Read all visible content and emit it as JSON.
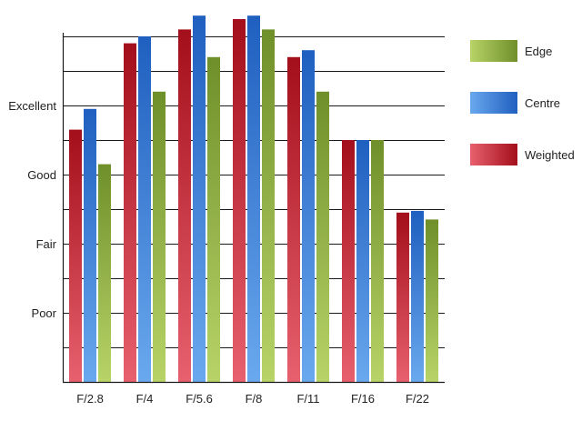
{
  "chart_data": {
    "type": "bar",
    "categories": [
      "F/2.8",
      "F/4",
      "F/5.6",
      "F/8",
      "F/11",
      "F/16",
      "F/22"
    ],
    "series": [
      {
        "name": "Weighted",
        "values": [
          7.3,
          9.8,
          10.2,
          10.5,
          9.4,
          7.0,
          4.9
        ]
      },
      {
        "name": "Centre",
        "values": [
          7.9,
          10.0,
          10.6,
          10.6,
          9.6,
          7.0,
          4.95
        ]
      },
      {
        "name": "Edge",
        "values": [
          6.3,
          8.4,
          9.4,
          10.2,
          8.4,
          7.0,
          4.7
        ]
      }
    ],
    "y_ticks": [
      {
        "value": 2,
        "label": "Poor"
      },
      {
        "value": 4,
        "label": "Fair"
      },
      {
        "value": 6,
        "label": "Good"
      },
      {
        "value": 8,
        "label": "Excellent"
      }
    ],
    "ylim": [
      0,
      10
    ],
    "grid": true,
    "legend": {
      "position": "right",
      "entries": [
        "Edge",
        "Centre",
        "Weighted"
      ]
    },
    "colors": {
      "Weighted": {
        "dark": "#a30f1a",
        "light": "#e8606e"
      },
      "Centre": {
        "dark": "#1f5fbf",
        "light": "#6aa8ee"
      },
      "Edge": {
        "dark": "#6f8f2a",
        "light": "#b8d468"
      }
    }
  }
}
